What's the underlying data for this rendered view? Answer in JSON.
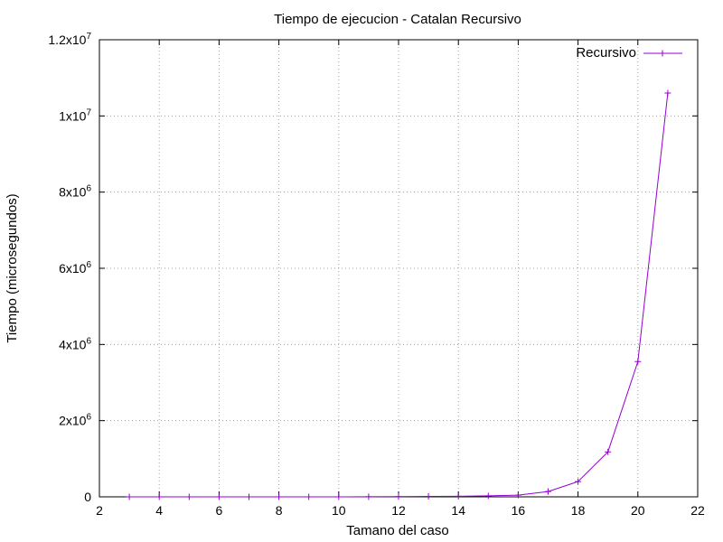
{
  "chart_data": {
    "type": "line",
    "title": "Tiempo de ejecucion - Catalan Recursivo",
    "xlabel": "Tamano del caso",
    "ylabel": "Tiempo (microsegundos)",
    "xlim": [
      2,
      22
    ],
    "ylim": [
      0,
      12000000
    ],
    "x_ticks": [
      2,
      4,
      6,
      8,
      10,
      12,
      14,
      16,
      18,
      20,
      22
    ],
    "y_ticks": [
      {
        "value": 0,
        "mantissa": "0",
        "exponent": ""
      },
      {
        "value": 2000000,
        "mantissa": "2x10",
        "exponent": "6"
      },
      {
        "value": 4000000,
        "mantissa": "4x10",
        "exponent": "6"
      },
      {
        "value": 6000000,
        "mantissa": "6x10",
        "exponent": "6"
      },
      {
        "value": 8000000,
        "mantissa": "8x10",
        "exponent": "6"
      },
      {
        "value": 10000000,
        "mantissa": "1x10",
        "exponent": "7"
      },
      {
        "value": 12000000,
        "mantissa": "1.2x10",
        "exponent": "7"
      }
    ],
    "grid": true,
    "legend_position": "top-right",
    "series": [
      {
        "name": "Recursivo",
        "color": "#9400d3",
        "marker": "plus",
        "x": [
          3,
          4,
          5,
          6,
          7,
          8,
          9,
          10,
          11,
          12,
          13,
          14,
          15,
          16,
          17,
          18,
          19,
          20,
          21
        ],
        "y": [
          1,
          2,
          5,
          12,
          30,
          80,
          220,
          600,
          1600,
          4500,
          12000,
          14000,
          25000,
          45000,
          140000,
          400000,
          1180000,
          3550000,
          10600000
        ]
      }
    ]
  }
}
